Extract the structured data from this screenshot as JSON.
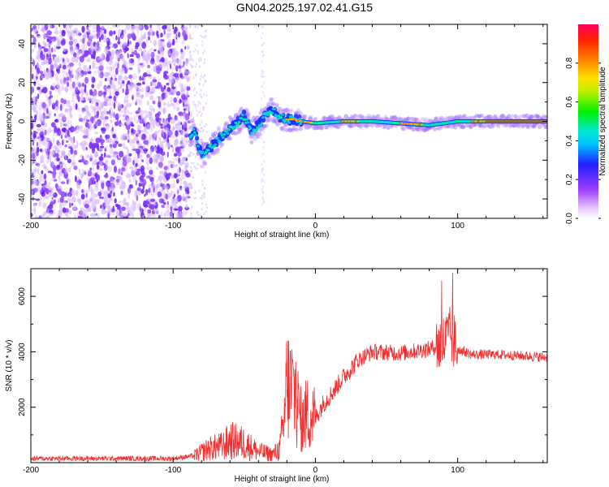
{
  "title": "GN04.2025.197.02.41.G15",
  "colors": {
    "snr_line": "#f03030",
    "dots": "#7b2fff",
    "dots_light": "#c9a6ff"
  },
  "chart_data": [
    {
      "type": "heatmap",
      "title": "GN04.2025.197.02.41.G15",
      "xlabel": "Height of straight line (km)",
      "ylabel": "Frequency (Hz)",
      "xlim": [
        -200,
        163
      ],
      "ylim": [
        -50,
        50
      ],
      "xticks": [
        -200,
        -100,
        0,
        100
      ],
      "yticks": [
        -40,
        -20,
        0,
        20,
        40
      ],
      "colorbar": {
        "label": "Normalized spectral amplitude",
        "range": [
          0,
          1
        ],
        "ticks": [
          "0.0",
          "0.2",
          "0.4",
          "0.6",
          "0.8"
        ]
      },
      "ridge": [
        [
          -88,
          -7
        ],
        [
          -85,
          -4
        ],
        [
          -80,
          -18
        ],
        [
          -75,
          -14
        ],
        [
          -70,
          -11
        ],
        [
          -65,
          -7
        ],
        [
          -60,
          -4
        ],
        [
          -55,
          -1
        ],
        [
          -50,
          3
        ],
        [
          -45,
          -5
        ],
        [
          -40,
          -2
        ],
        [
          -35,
          3
        ],
        [
          -30,
          6
        ],
        [
          -25,
          2
        ],
        [
          -20,
          1
        ],
        [
          -15,
          1
        ],
        [
          -10,
          0
        ],
        [
          0,
          -1
        ],
        [
          20,
          0
        ],
        [
          40,
          0
        ],
        [
          60,
          -1
        ],
        [
          80,
          -2
        ],
        [
          100,
          0
        ],
        [
          130,
          0
        ],
        [
          163,
          0
        ]
      ]
    },
    {
      "type": "line",
      "xlabel": "Height of straight line (km)",
      "ylabel": "SNR (10 * v/v)",
      "xlim": [
        -200,
        163
      ],
      "ylim": [
        0,
        7000
      ],
      "xticks": [
        -200,
        -100,
        0,
        100
      ],
      "yticks": [
        2000,
        4000,
        6000
      ],
      "envelope": [
        [
          -200,
          150
        ],
        [
          -150,
          150
        ],
        [
          -100,
          150
        ],
        [
          -85,
          250
        ],
        [
          -75,
          500
        ],
        [
          -65,
          600
        ],
        [
          -60,
          800
        ],
        [
          -50,
          700
        ],
        [
          -40,
          400
        ],
        [
          -30,
          300
        ],
        [
          -25,
          500
        ],
        [
          -22,
          1500
        ],
        [
          -20,
          2800
        ],
        [
          -15,
          2600
        ],
        [
          -10,
          1500
        ],
        [
          -5,
          1800
        ],
        [
          0,
          1600
        ],
        [
          5,
          2100
        ],
        [
          10,
          2400
        ],
        [
          20,
          3100
        ],
        [
          30,
          3700
        ],
        [
          40,
          4000
        ],
        [
          60,
          3950
        ],
        [
          80,
          4100
        ],
        [
          90,
          4300
        ],
        [
          95,
          4600
        ],
        [
          100,
          4100
        ],
        [
          110,
          3900
        ],
        [
          130,
          3900
        ],
        [
          163,
          3800
        ]
      ]
    }
  ]
}
